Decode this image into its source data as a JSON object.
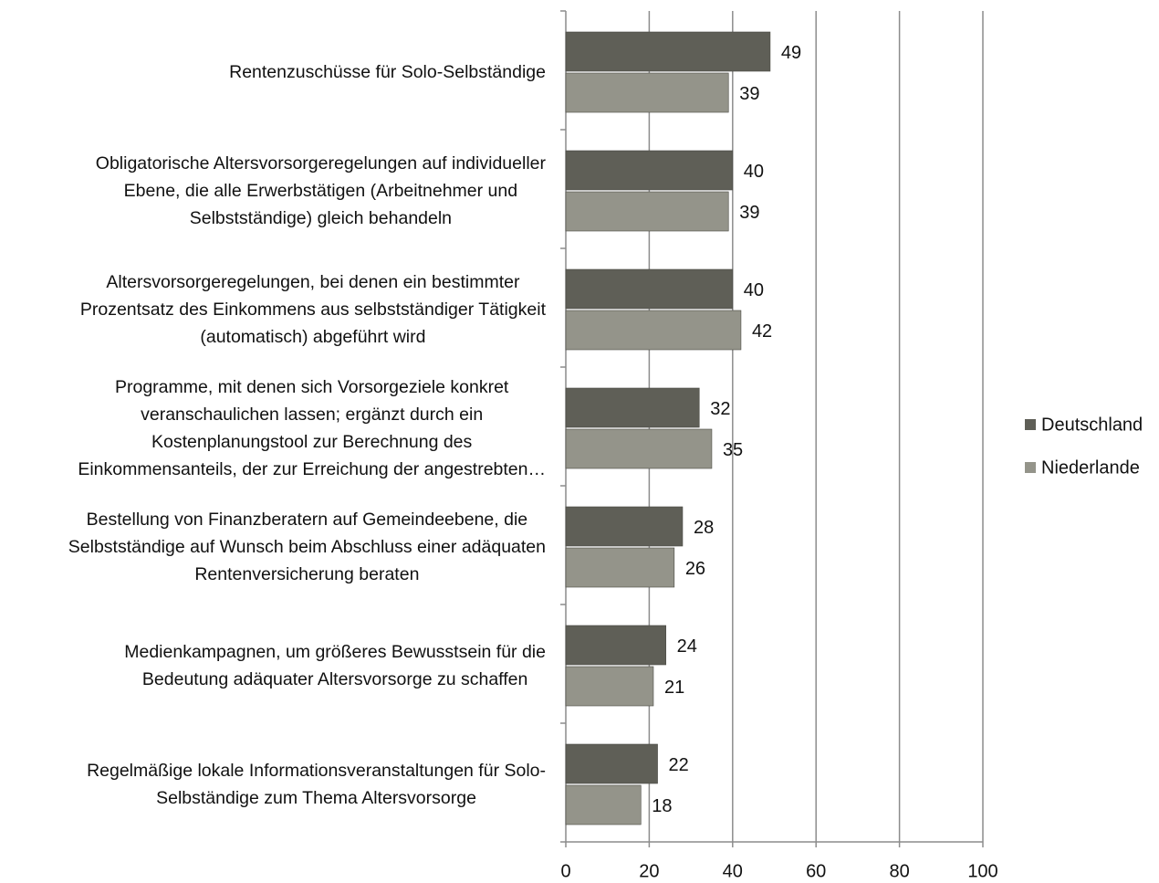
{
  "chart_data": {
    "type": "bar",
    "orientation": "horizontal",
    "categories": [
      "Rentenzuschüsse für Solo-Selbständige",
      "Obligatorische Altersvorsorgeregelungen auf individueller\nEbene, die alle Erwerbstätigen (Arbeitnehmer und\nSelbstständige) gleich behandeln",
      "Altersvorsorgeregelungen, bei denen ein bestimmter\nProzentsatz des Einkommens aus selbstständiger Tätigkeit\n(automatisch) abgeführt wird",
      "Programme, mit denen sich Vorsorgeziele konkret\nveranschaulichen lassen; ergänzt durch ein\nKostenplanungstool zur Berechnung des\nEinkommensanteils, der zur Erreichung der angestrebten…",
      "Bestellung von Finanzberatern auf Gemeindeebene, die\nSelbstständige auf Wunsch beim Abschluss einer adäquaten\nRentenversicherung beraten",
      "Medienkampagnen, um größeres Bewusstsein für die\nBedeutung adäquater Altersvorsorge zu schaffen",
      "Regelmäßige lokale Informationsveranstaltungen für Solo-\nSelbständige zum Thema Altersvorsorge"
    ],
    "series": [
      {
        "name": "Deutschland",
        "color": "#5f5f57",
        "values": [
          49,
          40,
          40,
          32,
          28,
          24,
          22
        ]
      },
      {
        "name": "Niederlande",
        "color": "#94948a",
        "values": [
          39,
          39,
          42,
          35,
          26,
          21,
          18
        ]
      }
    ],
    "xlim": [
      0,
      100
    ],
    "xticks": [
      0,
      20,
      40,
      60,
      80,
      100
    ],
    "grid": true,
    "legend": "right"
  }
}
